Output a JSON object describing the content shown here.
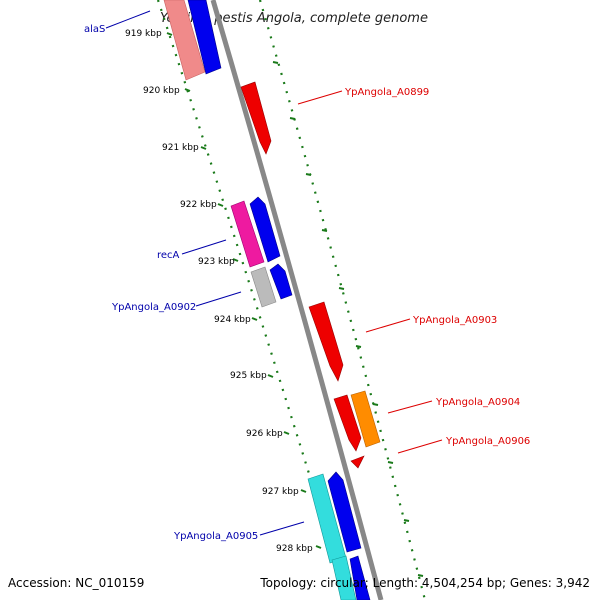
{
  "title": "Yersinia pestis Angola, complete genome",
  "footer": {
    "accession": "Accession: NC_010159",
    "summary": "Topology: circular; Length: 4,504,254 bp; Genes: 3,942"
  },
  "ticks": [
    "919 kbp",
    "920 kbp",
    "921 kbp",
    "922 kbp",
    "923 kbp",
    "924 kbp",
    "925 kbp",
    "926 kbp",
    "927 kbp",
    "928 kbp"
  ],
  "gene_labels": {
    "alaS": "alaS",
    "A0899": "YpAngola_A0899",
    "recA": "recA",
    "A0902": "YpAngola_A0902",
    "A0903": "YpAngola_A0903",
    "A0904": "YpAngola_A0904",
    "A0906": "YpAngola_A0906",
    "A0905": "YpAngola_A0905"
  },
  "colors": {
    "backbone": "#888888",
    "ruler_dots": "#1a7a1a",
    "minus_strand_label": "#0000aa",
    "plus_strand_label": "#dd0000"
  }
}
